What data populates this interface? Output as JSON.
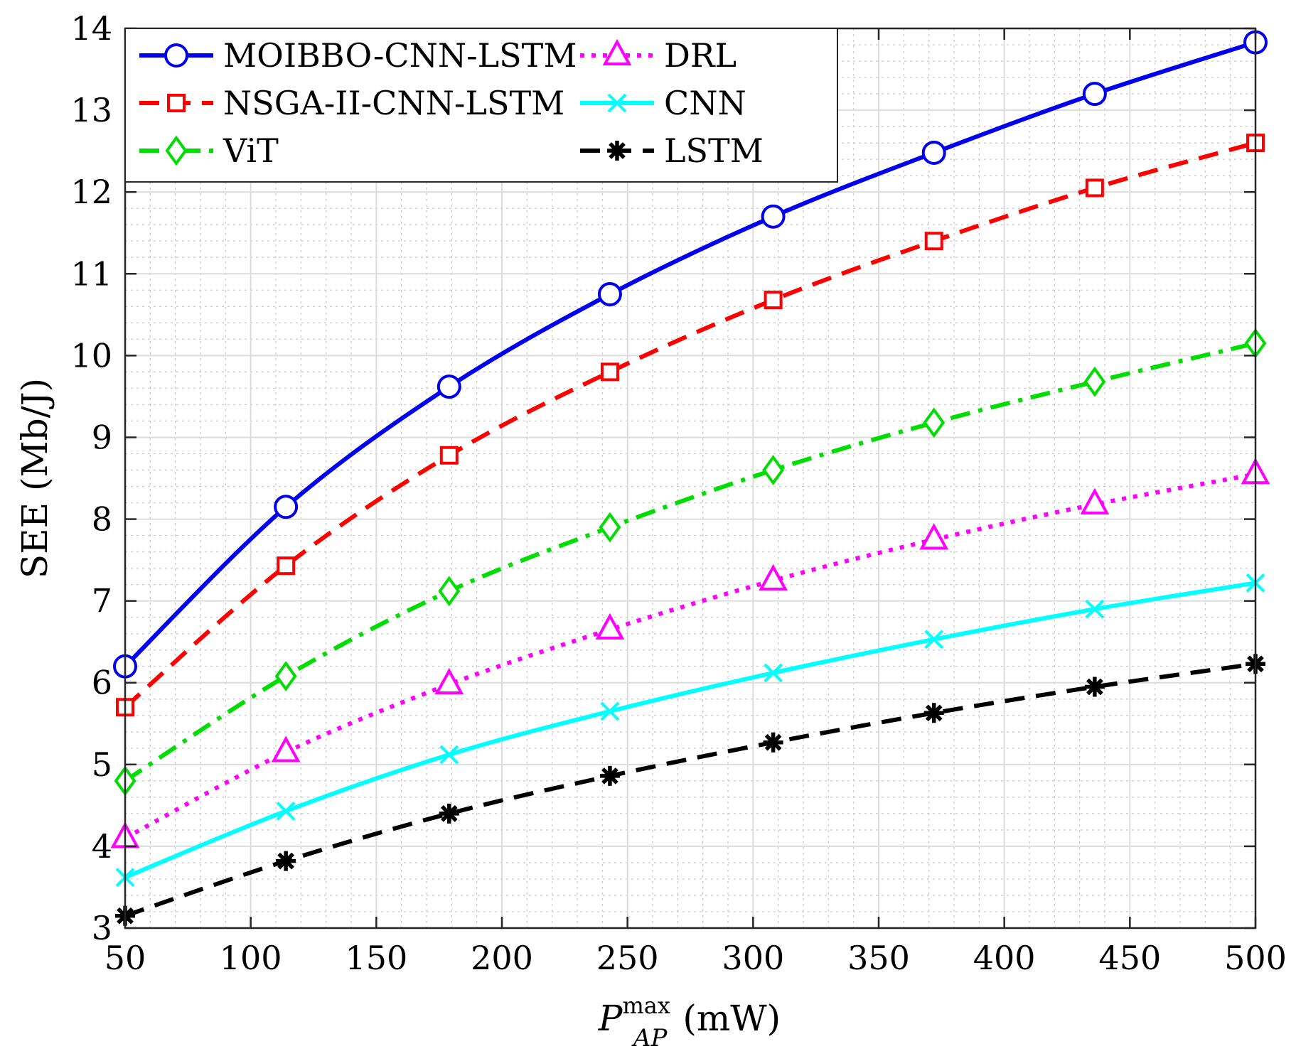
{
  "chart_data": {
    "type": "line",
    "title": "",
    "xlabel": {
      "symbol": "P",
      "sup": "max",
      "sub": "AP",
      "unit": "(mW)"
    },
    "ylabel": "SEE (Mb/J)",
    "xlim": [
      50,
      500
    ],
    "ylim": [
      3,
      14
    ],
    "x_ticks": [
      "50",
      "100",
      "150",
      "200",
      "250",
      "300",
      "350",
      "400",
      "450",
      "500"
    ],
    "y_ticks": [
      "3",
      "4",
      "5",
      "6",
      "7",
      "8",
      "9",
      "10",
      "11",
      "12",
      "13",
      "14"
    ],
    "grid": true,
    "minor_grid": true,
    "legend_position": "top-left",
    "x": [
      50,
      114,
      179,
      243,
      308,
      372,
      436,
      500
    ],
    "series": [
      {
        "name": "MOIBBO-CNN-LSTM",
        "color": "#0000ee",
        "dash": "solid",
        "marker": "circle",
        "values": [
          6.2,
          8.15,
          9.62,
          10.75,
          11.7,
          12.48,
          13.2,
          13.83
        ]
      },
      {
        "name": "NSGA-II-CNN-LSTM",
        "color": "#ff0000",
        "dash": "dashed",
        "marker": "square",
        "values": [
          5.7,
          7.43,
          8.78,
          9.8,
          10.68,
          11.4,
          12.05,
          12.6
        ]
      },
      {
        "name": "ViT",
        "color": "#00dd00",
        "dash": "dashdot",
        "marker": "diamond",
        "values": [
          4.8,
          6.08,
          7.12,
          7.9,
          8.6,
          9.18,
          9.68,
          10.15
        ]
      },
      {
        "name": "DRL",
        "color": "#ff00ff",
        "dash": "dotted",
        "marker": "triangle",
        "values": [
          4.1,
          5.15,
          5.98,
          6.65,
          7.25,
          7.75,
          8.18,
          8.55
        ]
      },
      {
        "name": "CNN",
        "color": "#00ffff",
        "dash": "solid",
        "marker": "x",
        "values": [
          3.62,
          4.43,
          5.12,
          5.65,
          6.12,
          6.53,
          6.9,
          7.22
        ]
      },
      {
        "name": "LSTM",
        "color": "#000000",
        "dash": "dashed",
        "marker": "star",
        "values": [
          3.15,
          3.82,
          4.4,
          4.86,
          5.27,
          5.63,
          5.95,
          6.23
        ]
      }
    ]
  }
}
